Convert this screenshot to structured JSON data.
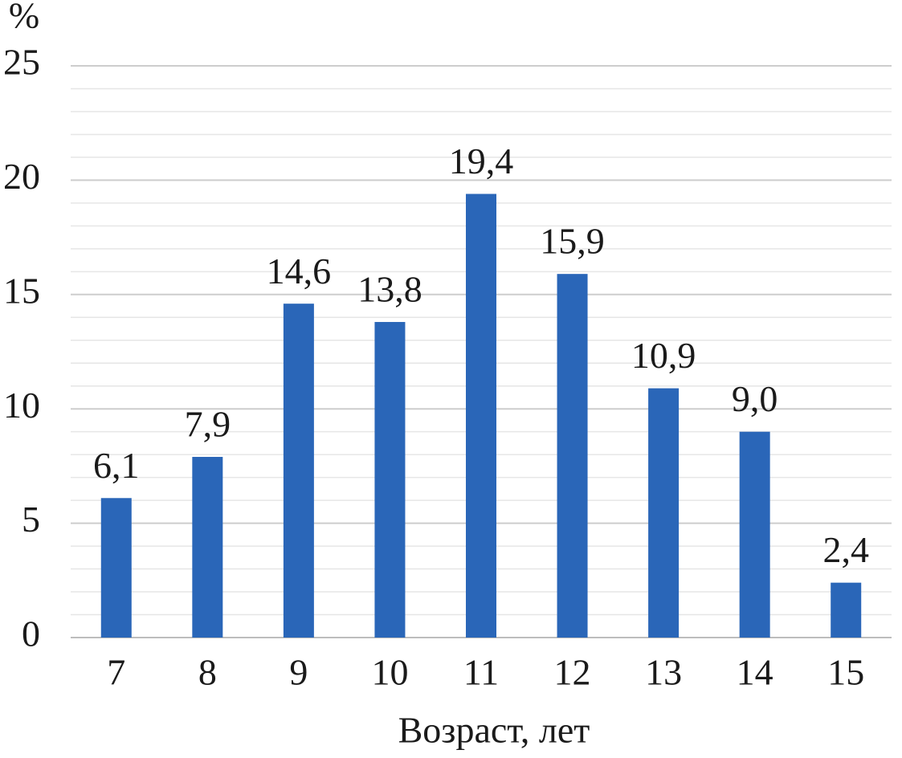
{
  "chart_data": {
    "type": "bar",
    "y_label": "%",
    "x_label": "Возраст, лет",
    "categories": [
      "7",
      "8",
      "9",
      "10",
      "11",
      "12",
      "13",
      "14",
      "15"
    ],
    "values": [
      6.1,
      7.9,
      14.6,
      13.8,
      19.4,
      15.9,
      10.9,
      9.0,
      2.4
    ],
    "value_labels": [
      "6,1",
      "7,9",
      "14,6",
      "13,8",
      "19,4",
      "15,9",
      "10,9",
      "9,0",
      "2,4"
    ],
    "color": "#2a66b8",
    "ylim": [
      0,
      25
    ],
    "yticks": [
      0,
      5,
      10,
      15,
      20,
      25
    ],
    "minor_yticks": [
      1,
      2,
      3,
      4,
      6,
      7,
      8,
      9,
      11,
      12,
      13,
      14,
      16,
      17,
      18,
      19,
      21,
      22,
      23,
      24
    ],
    "grid": true
  }
}
